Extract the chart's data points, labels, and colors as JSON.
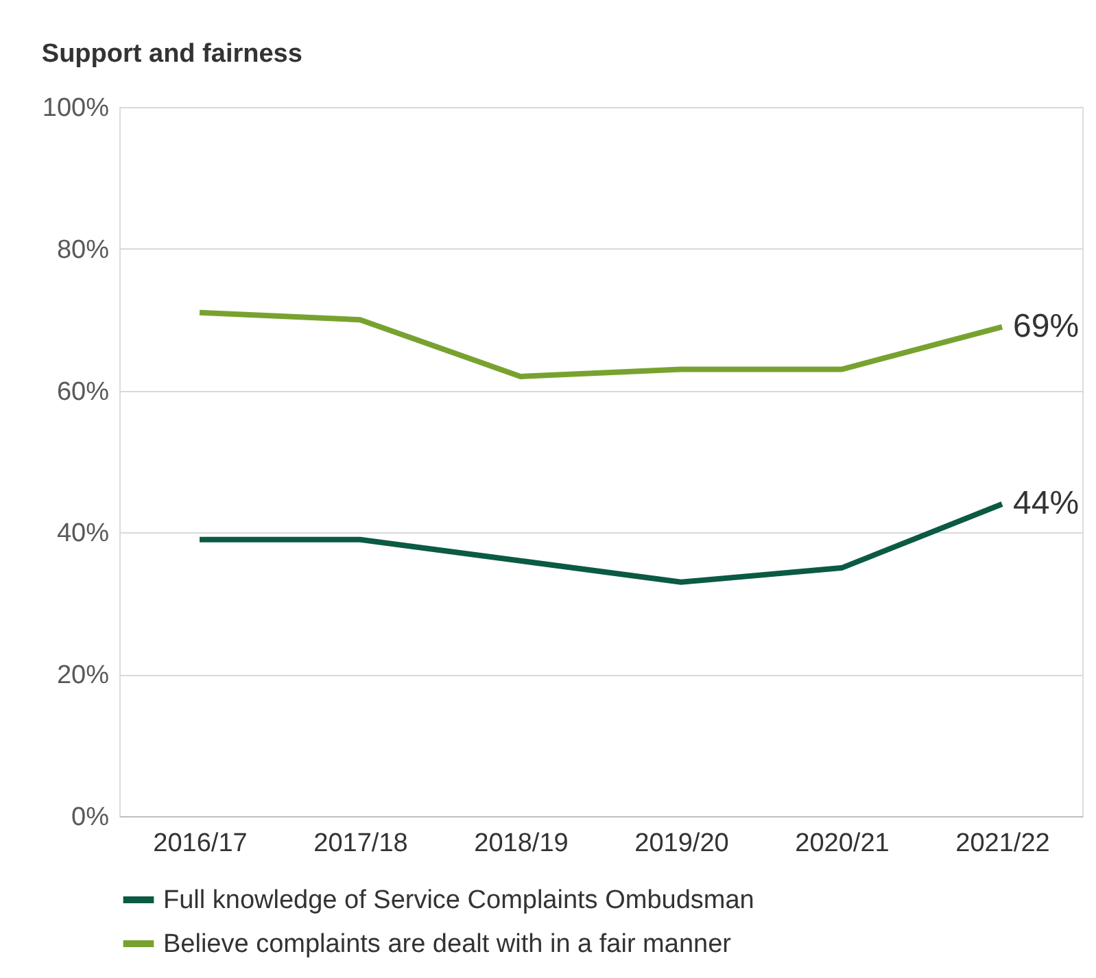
{
  "chart_data": {
    "type": "line",
    "title": "Support and fairness",
    "categories": [
      "2016/17",
      "2017/18",
      "2018/19",
      "2019/20",
      "2020/21",
      "2021/22"
    ],
    "series": [
      {
        "name": "Full knowledge of Service Complaints Ombudsman",
        "color": "#0b5a43",
        "values": [
          39,
          39,
          36,
          33,
          35,
          44
        ],
        "value_labels": [
          null,
          null,
          null,
          null,
          null,
          "44%"
        ]
      },
      {
        "name": "Believe complaints are dealt with in a fair manner",
        "color": "#78a22f",
        "values": [
          71,
          70,
          62,
          63,
          63,
          69
        ],
        "value_labels": [
          null,
          null,
          null,
          null,
          null,
          "69%"
        ]
      }
    ],
    "ylim": [
      0,
      100
    ],
    "yticks": [
      {
        "value": 0,
        "label": "0%"
      },
      {
        "value": 20,
        "label": "20%"
      },
      {
        "value": 40,
        "label": "40%"
      },
      {
        "value": 60,
        "label": "60%"
      },
      {
        "value": 80,
        "label": "80%"
      },
      {
        "value": 100,
        "label": "100%"
      }
    ],
    "grid": "y",
    "legend": "bottom",
    "marker": "none",
    "line_style": "solid"
  }
}
